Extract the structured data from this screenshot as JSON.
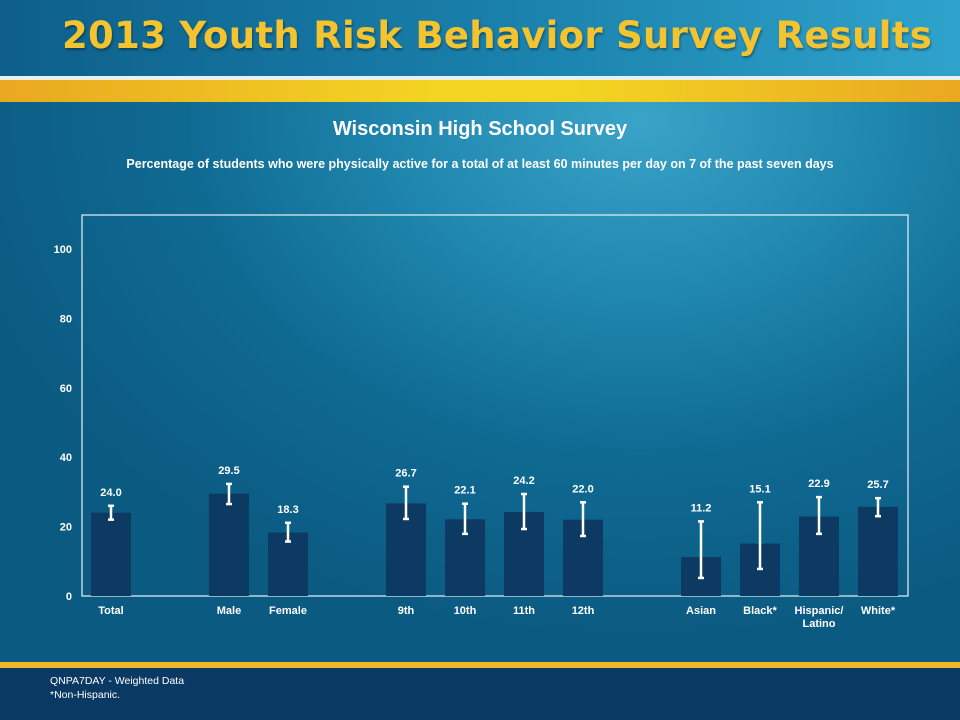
{
  "header": {
    "title": "2013 Youth Risk Behavior Survey Results"
  },
  "colors": {
    "bar": "#0c3a63",
    "errorbar": "#ffffff",
    "header_text": "#f4c430",
    "accent": "#f3d422"
  },
  "chart_data": {
    "type": "bar",
    "title": "Wisconsin High School Survey",
    "subtitle": "Percentage of students who were physically active for a total of at least 60 minutes per day on 7 of the past seven days",
    "ylim": [
      0,
      100
    ],
    "yticks": [
      0,
      20,
      40,
      60,
      80,
      100
    ],
    "grid": false,
    "categories": [
      "Total",
      "Male",
      "Female",
      "9th",
      "10th",
      "11th",
      "12th",
      "Asian",
      "Black*",
      "Hispanic/ Latino",
      "White*"
    ],
    "category_lines": [
      [
        "Total"
      ],
      [
        "Male"
      ],
      [
        "Female"
      ],
      [
        "9th"
      ],
      [
        "10th"
      ],
      [
        "11th"
      ],
      [
        "12th"
      ],
      [
        "Asian"
      ],
      [
        "Black*"
      ],
      [
        "Hispanic/",
        "Latino"
      ],
      [
        "White*"
      ]
    ],
    "values": [
      24.0,
      29.5,
      18.3,
      26.7,
      22.1,
      24.2,
      22.0,
      11.2,
      15.1,
      22.9,
      25.7
    ],
    "value_labels": [
      "24.0",
      "29.5",
      "18.3",
      "26.7",
      "22.1",
      "24.2",
      "22.0",
      "11.2",
      "15.1",
      "22.9",
      "25.7"
    ],
    "error_low": [
      22.0,
      26.5,
      15.7,
      22.2,
      17.9,
      19.3,
      17.3,
      5.2,
      7.8,
      17.9,
      23.0
    ],
    "error_high": [
      26.0,
      32.3,
      21.1,
      31.5,
      26.6,
      29.4,
      27.0,
      21.5,
      27.0,
      28.5,
      28.2
    ]
  },
  "footer": {
    "note1": "QNPA7DAY - Weighted Data",
    "note2": "*Non-Hispanic."
  }
}
